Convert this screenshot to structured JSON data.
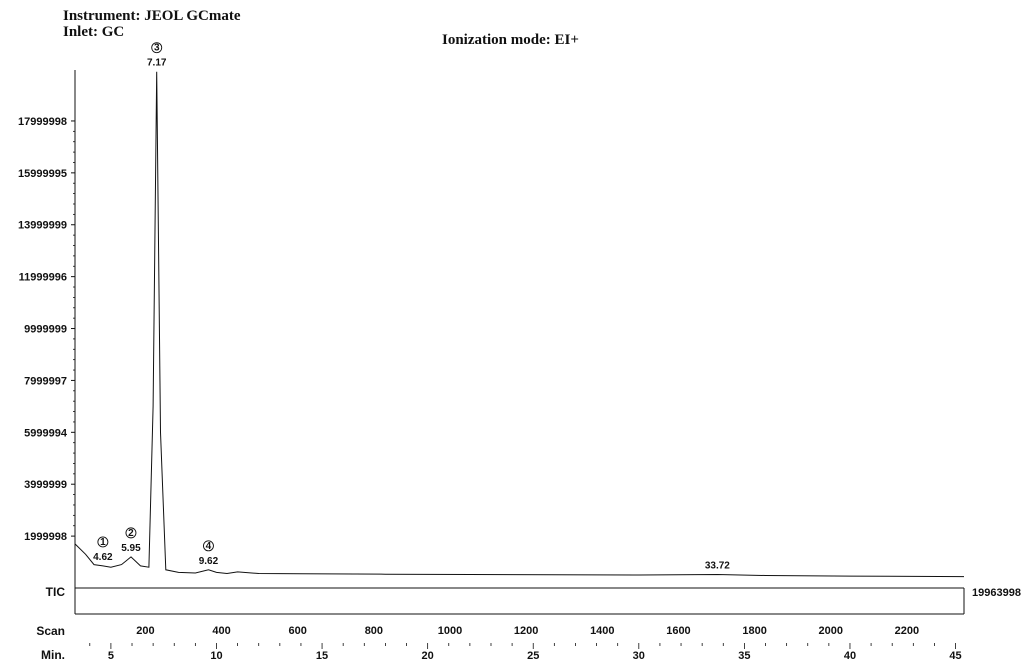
{
  "header": {
    "instrument": "Instrument: JEOL GCmate",
    "inlet": "Inlet: GC",
    "ionization": "Ionization mode: EI+"
  },
  "chart_data": {
    "type": "line",
    "trace_label": "TIC",
    "full_scale_label": "19963998",
    "x_axes": {
      "scan": {
        "label": "Scan",
        "ticks": [
          200,
          400,
          600,
          800,
          1000,
          1200,
          1400,
          1600,
          1800,
          2000,
          2200
        ],
        "range": [
          15,
          2350
        ]
      },
      "minutes": {
        "label": "Min.",
        "ticks": [
          5,
          10,
          15,
          20,
          25,
          30,
          35,
          40,
          45
        ],
        "range": [
          3.3,
          45.4
        ]
      }
    },
    "y_axis": {
      "ticks": [
        {
          "label": "1999998",
          "value": 1999998
        },
        {
          "label": "3999999",
          "value": 3999999
        },
        {
          "label": "5999994",
          "value": 5999994
        },
        {
          "label": "7999997",
          "value": 7999997
        },
        {
          "label": "9999999",
          "value": 9999999
        },
        {
          "label": "11999996",
          "value": 11999996
        },
        {
          "label": "13999999",
          "value": 13999999
        },
        {
          "label": "15999995",
          "value": 15999995
        },
        {
          "label": "17999998",
          "value": 17999998
        }
      ],
      "range": [
        0,
        19963998
      ]
    },
    "series": [
      {
        "x_min": [
          3.3,
          3.8,
          4.2,
          4.62,
          5.0,
          5.5,
          5.95,
          6.4,
          6.8,
          7.0,
          7.17,
          7.35,
          7.6,
          8.2,
          9.0,
          9.62,
          10.0,
          10.5,
          11.0,
          12.0,
          14.0,
          18.0,
          22.0,
          26.0,
          30.0,
          33.72,
          36.0,
          40.0,
          45.4
        ],
        "y": [
          1700000,
          1300000,
          900000,
          850000,
          800000,
          900000,
          1200000,
          850000,
          800000,
          7000000,
          19900000,
          6000000,
          700000,
          600000,
          580000,
          700000,
          600000,
          560000,
          620000,
          560000,
          550000,
          530000,
          520000,
          510000,
          500000,
          520000,
          480000,
          460000,
          440000
        ]
      }
    ],
    "peaks": [
      {
        "number": "1",
        "rt": "4.62",
        "rt_value": 4.62
      },
      {
        "number": "2",
        "rt": "5.95",
        "rt_value": 5.95
      },
      {
        "number": "3",
        "rt": "7.17",
        "rt_value": 7.17
      },
      {
        "number": "4",
        "rt": "9.62",
        "rt_value": 9.62
      },
      {
        "number": "",
        "rt": "33.72",
        "rt_value": 33.72
      }
    ]
  }
}
